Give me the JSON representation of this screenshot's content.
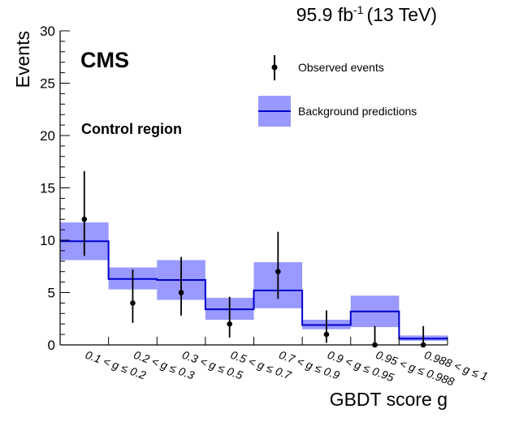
{
  "chart_data": {
    "type": "histogram",
    "lumi_label": "95.9 fb",
    "lumi_superscript": "-1",
    "lumi_energy": "(13 TeV)",
    "experiment_label": "CMS",
    "region_label": "Control region",
    "xlabel": "GBDT score g",
    "ylabel": "Events",
    "ylim": [
      0,
      30
    ],
    "yticks": [
      "0",
      "5",
      "10",
      "15",
      "20",
      "25",
      "30"
    ],
    "yvalues": [
      0,
      5,
      10,
      15,
      20,
      25,
      30
    ],
    "categories": [
      "0.1 < g ≤ 0.2",
      "0.2 < g ≤ 0.3",
      "0.3 < g ≤ 0.5",
      "0.5 < g ≤ 0.7",
      "0.7 < g ≤ 0.9",
      "0.9 < g ≤ 0.95",
      "0.95 < g ≤ 0.988",
      "0.988 < g ≤ 1"
    ],
    "series": [
      {
        "name": "Observed events",
        "values": [
          12,
          4,
          5,
          2,
          7,
          1,
          0,
          0
        ],
        "err_low": [
          3.5,
          1.9,
          2.2,
          1.3,
          2.6,
          0.8,
          0,
          0
        ],
        "err_high": [
          4.6,
          3.2,
          3.4,
          2.6,
          3.8,
          2.3,
          1.8,
          1.8
        ]
      },
      {
        "name": "Background predictions",
        "values": [
          9.9,
          6.3,
          6.2,
          3.4,
          5.2,
          1.9,
          3.2,
          0.6
        ],
        "unc_low": [
          8.1,
          5.3,
          4.3,
          2.4,
          3.5,
          1.5,
          1.7,
          0.4
        ],
        "unc_high": [
          11.7,
          7.4,
          8.1,
          4.5,
          7.9,
          2.4,
          4.7,
          0.9
        ]
      }
    ],
    "colors": {
      "line": "#0000cc",
      "band": "#9999ff",
      "points": "#000000"
    }
  }
}
